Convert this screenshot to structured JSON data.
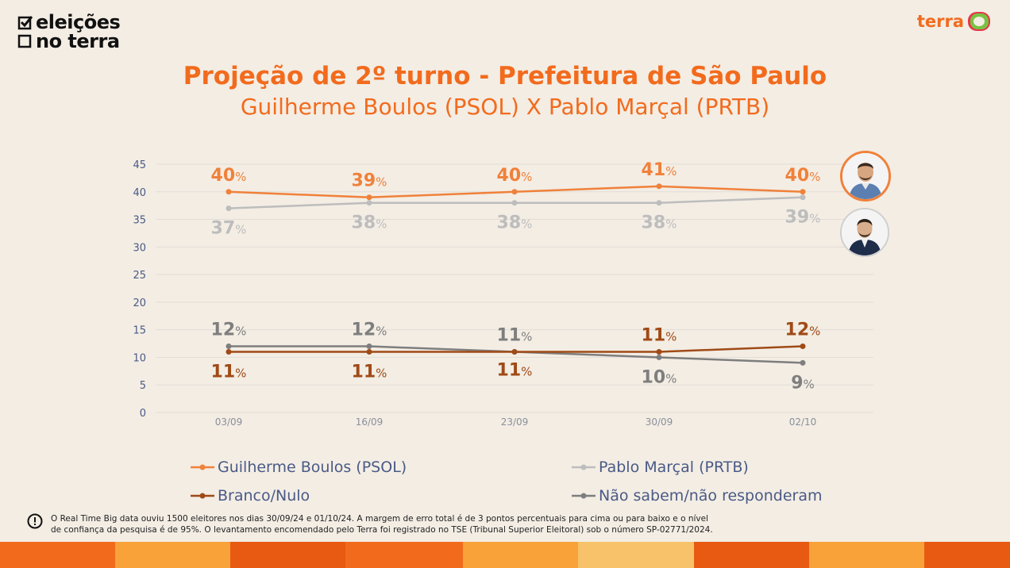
{
  "brand": {
    "line1": "eleições",
    "line2": "no terra"
  },
  "terra_logo": {
    "word": "terra",
    "icon": "terra-badge-icon"
  },
  "colors": {
    "boulos": "#f0813a",
    "marcal": "#bdbdbd",
    "branco": "#a04a16",
    "nao_sabem": "#7e7e7e",
    "title": "#f26b1d",
    "axis_text": "#4a5a86"
  },
  "chart_data": {
    "type": "line",
    "title": "Projeção de 2º turno - Prefeitura de São Paulo",
    "subtitle": "Guilherme Boulos (PSOL) X Pablo Marçal (PRTB)",
    "xlabel": "",
    "ylabel": "",
    "ylim": [
      0,
      45
    ],
    "yticks": [
      "45",
      "40",
      "35",
      "30",
      "25",
      "20",
      "15",
      "10",
      "5",
      "0"
    ],
    "categories": [
      "03/09",
      "16/09",
      "23/09",
      "30/09",
      "02/10"
    ],
    "grid": true,
    "legend_position": "bottom",
    "series": [
      {
        "name": "Guilherme Boulos (PSOL)",
        "values": [
          40,
          39,
          40,
          41,
          40
        ],
        "labels": [
          "40",
          "39",
          "40",
          "41",
          "40"
        ]
      },
      {
        "name": "Pablo Marçal (PRTB)",
        "values": [
          37,
          38,
          38,
          38,
          39
        ],
        "labels": [
          "37",
          "38",
          "38",
          "38",
          "39"
        ]
      },
      {
        "name": "Branco/Nulo",
        "values": [
          11,
          11,
          11,
          11,
          12
        ],
        "labels": [
          "11",
          "11",
          "11",
          "11",
          "12"
        ]
      },
      {
        "name": "Não sabem/não responderam",
        "values": [
          12,
          12,
          11,
          10,
          9
        ],
        "labels": [
          "12",
          "12",
          "11",
          "10",
          "9"
        ]
      }
    ],
    "percent_sign": "%"
  },
  "avatars": [
    {
      "name": "boulos-avatar"
    },
    {
      "name": "marcal-avatar"
    }
  ],
  "footnote": {
    "line1": "O Real Time Big data ouviu 1500 eleitores nos dias 30/09/24 e 01/10/24. A margem de erro total é de 3 pontos percentuais para cima ou para baixo e o nível",
    "line2": "de confiança da pesquisa é de 95%. O levantamento encomendado pelo Terra foi registrado no TSE (Tribunal Superior Eleitoral) sob o número SP-02771/2024."
  }
}
